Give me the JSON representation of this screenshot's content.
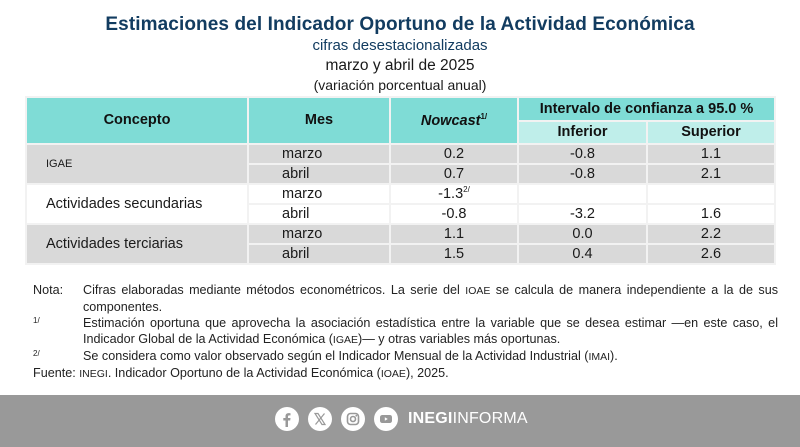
{
  "header": {
    "title": "Estimaciones del Indicador Oportuno de la Actividad Económica",
    "subtitle": "cifras desestacionalizadas",
    "period": "marzo y abril de 2025",
    "units": "(variación porcentual anual)"
  },
  "table": {
    "columns": {
      "concepto": "Concepto",
      "mes": "Mes",
      "nowcast": "Nowcast",
      "nowcast_note": "1/",
      "interval": "Intervalo de confianza a 95.0 %",
      "inferior": "Inferior",
      "superior": "Superior"
    },
    "groups": [
      {
        "concept": "IGAE",
        "rows": [
          {
            "month": "marzo",
            "nowcast": "0.2",
            "nowcast_note": "",
            "inferior": "-0.8",
            "superior": "1.1"
          },
          {
            "month": "abril",
            "nowcast": "0.7",
            "nowcast_note": "",
            "inferior": "-0.8",
            "superior": "2.1"
          }
        ]
      },
      {
        "concept": "Actividades secundarias",
        "rows": [
          {
            "month": "marzo",
            "nowcast": "-1.3",
            "nowcast_note": "2/",
            "inferior": "",
            "superior": ""
          },
          {
            "month": "abril",
            "nowcast": "-0.8",
            "nowcast_note": "",
            "inferior": "-3.2",
            "superior": "1.6"
          }
        ]
      },
      {
        "concept": "Actividades terciarias",
        "rows": [
          {
            "month": "marzo",
            "nowcast": "1.1",
            "nowcast_note": "",
            "inferior": "0.0",
            "superior": "2.2"
          },
          {
            "month": "abril",
            "nowcast": "1.5",
            "nowcast_note": "",
            "inferior": "0.4",
            "superior": "2.6"
          }
        ]
      }
    ]
  },
  "notes": {
    "nota_label": "Nota:",
    "nota_text_1": "Cifras elaboradas mediante métodos econométricos. La serie del ",
    "nota_abbr": "IOAE",
    "nota_text_2": " se calcula de manera independiente a la de sus componentes.",
    "n1_label": "1/",
    "n1_text_1": "Estimación oportuna que aprovecha la asociación estadística entre la variable que se desea estimar —en este caso, el Indicador Global de la Actividad Económica (",
    "n1_abbr": "IGAE",
    "n1_text_2": ")— y otras variables más oportunas.",
    "n2_label": "2/",
    "n2_text_1": "Se considera como valor observado según el Indicador Mensual de la Actividad Industrial (",
    "n2_abbr": "IMAI",
    "n2_text_2": ").",
    "fuente_label": "Fuente:",
    "fuente_abbr1": "INEGI",
    "fuente_text_1": ". Indicador Oportuno de la Actividad Económica (",
    "fuente_abbr2": "IOAE",
    "fuente_text_2": "), 2025."
  },
  "footer": {
    "icons": [
      "facebook-icon",
      "x-twitter-icon",
      "instagram-icon",
      "youtube-icon"
    ],
    "brand_bold": "INEGI",
    "brand_light": "INFORMA",
    "background": "#999999"
  },
  "colors": {
    "title": "#123c60",
    "header_main": "#7fdcd6",
    "header_sub": "#bfeeea",
    "row_gray": "#d9d9d9"
  }
}
